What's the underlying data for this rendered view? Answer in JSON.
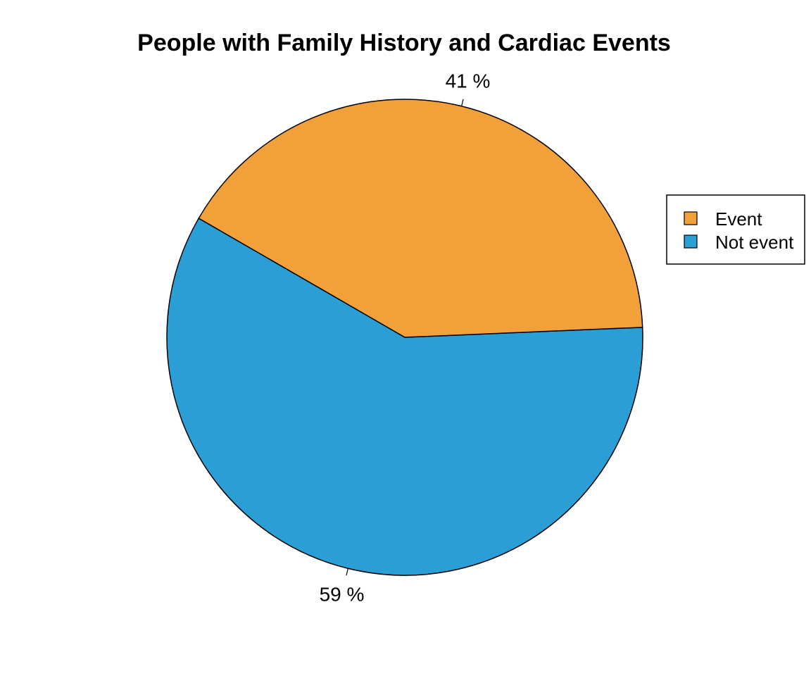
{
  "chart_data": {
    "type": "pie",
    "title": "People with Family History and Cardiac Events",
    "slices": [
      {
        "label": "Event",
        "value": 41,
        "value_label": "41 %",
        "color": "#f2a03a"
      },
      {
        "label": "Not event",
        "value": 59,
        "value_label": "59 %",
        "color": "#2b9ed5"
      }
    ],
    "legend": {
      "placement": "right",
      "entries": [
        "Event",
        "Not event"
      ]
    }
  }
}
